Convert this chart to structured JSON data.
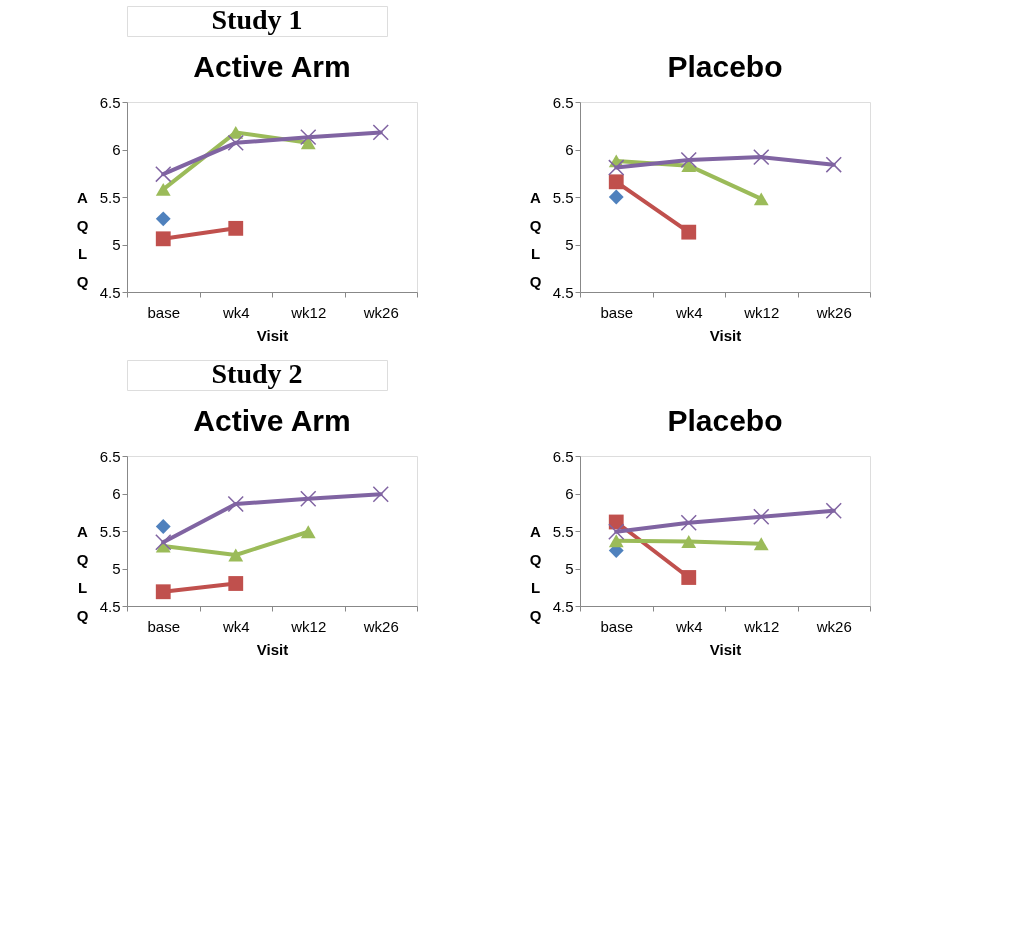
{
  "chart_data": [
    {
      "type": "line",
      "annotations": [
        "Study 1"
      ],
      "title": "Active Arm",
      "xlabel": "Visit",
      "ylabel": "AQLQ",
      "categories": [
        "base",
        "wk4",
        "wk12",
        "wk26"
      ],
      "ylim": [
        4.5,
        6.5
      ],
      "yticks": [
        4.5,
        5,
        5.5,
        6,
        6.5
      ],
      "grid": false,
      "series": [
        {
          "marker": "diamond",
          "color": "#4f81bd",
          "values": [
            5.27,
            null,
            null,
            null
          ]
        },
        {
          "marker": "square",
          "color": "#c0504d",
          "values": [
            5.06,
            5.17,
            null,
            null
          ]
        },
        {
          "marker": "triangle",
          "color": "#9bbb59",
          "values": [
            5.58,
            6.18,
            6.07,
            null
          ]
        },
        {
          "marker": "cross",
          "color": "#8064a2",
          "values": [
            5.74,
            6.07,
            6.13,
            6.18
          ]
        }
      ]
    },
    {
      "type": "line",
      "title": "Placebo",
      "xlabel": "Visit",
      "ylabel": "AQLQ",
      "categories": [
        "base",
        "wk4",
        "wk12",
        "wk26"
      ],
      "ylim": [
        4.5,
        6.5
      ],
      "yticks": [
        4.5,
        5,
        5.5,
        6,
        6.5
      ],
      "grid": false,
      "series": [
        {
          "marker": "diamond",
          "color": "#4f81bd",
          "values": [
            5.5,
            null,
            null,
            null
          ]
        },
        {
          "marker": "square",
          "color": "#c0504d",
          "values": [
            5.66,
            5.13,
            null,
            null
          ]
        },
        {
          "marker": "triangle",
          "color": "#9bbb59",
          "values": [
            5.88,
            5.83,
            5.48,
            null
          ]
        },
        {
          "marker": "cross",
          "color": "#8064a2",
          "values": [
            5.81,
            5.89,
            5.92,
            5.84
          ]
        }
      ]
    },
    {
      "type": "line",
      "annotations": [
        "Study 2"
      ],
      "title": "Active Arm",
      "xlabel": "Visit",
      "ylabel": "AQLQ",
      "categories": [
        "base",
        "wk4",
        "wk12",
        "wk26"
      ],
      "ylim": [
        4.5,
        6.5
      ],
      "yticks": [
        4.5,
        5,
        5.5,
        6,
        6.5
      ],
      "grid": false,
      "series": [
        {
          "marker": "diamond",
          "color": "#4f81bd",
          "values": [
            5.56,
            null,
            null,
            null
          ]
        },
        {
          "marker": "square",
          "color": "#c0504d",
          "values": [
            4.69,
            4.8,
            null,
            null
          ]
        },
        {
          "marker": "triangle",
          "color": "#9bbb59",
          "values": [
            5.3,
            5.18,
            5.49,
            null
          ]
        },
        {
          "marker": "cross",
          "color": "#8064a2",
          "values": [
            5.35,
            5.86,
            5.93,
            5.99
          ]
        }
      ]
    },
    {
      "type": "line",
      "title": "Placebo",
      "xlabel": "Visit",
      "ylabel": "AQLQ",
      "categories": [
        "base",
        "wk4",
        "wk12",
        "wk26"
      ],
      "ylim": [
        4.5,
        6.5
      ],
      "yticks": [
        4.5,
        5,
        5.5,
        6,
        6.5
      ],
      "grid": false,
      "series": [
        {
          "marker": "diamond",
          "color": "#4f81bd",
          "values": [
            5.24,
            null,
            null,
            null
          ]
        },
        {
          "marker": "square",
          "color": "#c0504d",
          "values": [
            5.62,
            4.88,
            null,
            null
          ]
        },
        {
          "marker": "triangle",
          "color": "#9bbb59",
          "values": [
            5.37,
            5.36,
            5.33,
            null
          ]
        },
        {
          "marker": "cross",
          "color": "#8064a2",
          "values": [
            5.49,
            5.61,
            5.69,
            5.77
          ]
        }
      ]
    }
  ]
}
